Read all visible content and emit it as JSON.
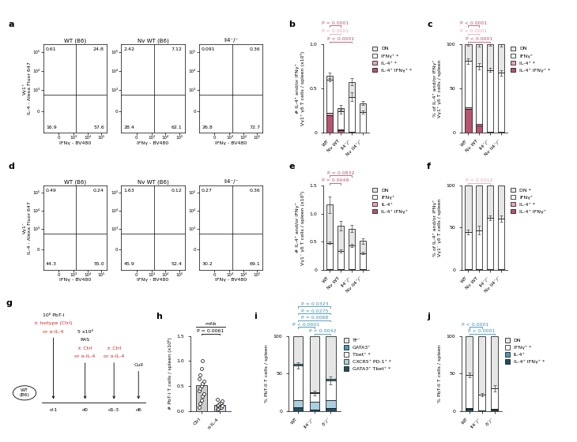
{
  "chart_data": [
    {
      "type": "flow",
      "panel": "a",
      "ylabel": "Vγ1⁺\nIL-4 - Alexa Fluor 647",
      "xlabel": "IFNγ - BV480",
      "log": true,
      "xlim": [
        -1000,
        250000
      ],
      "ylim": [
        -1000,
        250000
      ],
      "xticks": [
        0,
        {
          "value": 1000,
          "label": "10³"
        },
        {
          "value": 10000,
          "label": "10⁴"
        },
        {
          "value": 100000,
          "label": "10⁵"
        }
      ],
      "yticks": [
        0,
        {
          "value": 1000,
          "label": "10³"
        },
        {
          "value": 10000,
          "label": "10⁴"
        },
        {
          "value": 100000,
          "label": "10⁵"
        }
      ],
      "gates": {
        "x": 1500,
        "y": 800
      },
      "plots": [
        {
          "title": "WT (B6)",
          "quadrants": {
            "UL": 0.61,
            "UR": 24.8,
            "LL": 16.9,
            "LR": 57.6
          }
        },
        {
          "title": "Nv WT (B6)",
          "quadrants": {
            "UL": 2.42,
            "UR": 7.12,
            "LL": 28.4,
            "LR": 62.1
          }
        },
        {
          "title": "Il4⁻/⁻",
          "quadrants": {
            "UL": 0.091,
            "UR": 0.36,
            "LL": 26.8,
            "LR": 72.7
          }
        }
      ]
    },
    {
      "type": "bar",
      "stacked": true,
      "panel": "b",
      "ylabel": "# IL-4⁺ and/or IFNγ⁺\nVγ1⁺ γδ T cells / spleen (x10⁵)",
      "categories": [
        "WT",
        "Nv WT",
        "Il4⁻/⁻",
        "Nv Il4⁻/⁻"
      ],
      "ylim": [
        0,
        1
      ],
      "yticks": [
        0,
        0.5,
        {
          "value": 1,
          "label": "1.0"
        }
      ],
      "legend": "right",
      "series": [
        {
          "name": "IL-4⁺ IFNγ⁺ *",
          "color": "#b5566e",
          "values": [
            0.2,
            0.03,
            0.003,
            0.002
          ]
        },
        {
          "name": "IL-4⁺ *",
          "color": "#e6a7b8",
          "values": [
            0.02,
            0.01,
            0.002,
            0.001
          ]
        },
        {
          "name": "IFNγ⁺ *",
          "color": "#ffffff",
          "values": [
            0.38,
            0.2,
            0.4,
            0.23
          ],
          "errors": [
            0.02,
            0.03,
            0.05,
            0.02
          ]
        },
        {
          "name": "DN",
          "color": "#e6e6e6",
          "values": [
            0.04,
            0.04,
            0.17,
            0.1
          ],
          "errors": [
            0.04,
            0.03,
            0.04,
            0.02
          ]
        }
      ],
      "annotations": [
        {
          "text": "P < 0.0001",
          "between": [
            "WT",
            "Il4⁻/⁻"
          ],
          "color": "#b5566e"
        },
        {
          "text": "P = 0.0001",
          "between": [
            "WT",
            "Nv WT"
          ],
          "color": "#e6a7b8"
        },
        {
          "text": "P = 0.0001",
          "between": [
            "WT",
            "Nv WT"
          ],
          "color": "#b5566e"
        }
      ]
    },
    {
      "type": "bar",
      "stacked": true,
      "panel": "c",
      "ylabel": "% of IL-4⁺ and/or IFNγ⁺\nVγ1⁺ γδ T cells / spleen",
      "categories": [
        "WT",
        "Nv WT",
        "Il4⁻/⁻",
        "Nv Il4⁻/⁻"
      ],
      "ylim": [
        0,
        100
      ],
      "yticks": [
        0,
        50,
        100
      ],
      "legend": "right",
      "series": [
        {
          "name": "IL-4⁺ IFNγ⁺ *",
          "color": "#b5566e",
          "values": [
            27,
            8,
            0.5,
            0.3
          ]
        },
        {
          "name": "IL-4⁺ *",
          "color": "#e6a7b8",
          "values": [
            2,
            2,
            0.3,
            0.2
          ]
        },
        {
          "name": "IFNγ⁺",
          "color": "#ffffff",
          "values": [
            52,
            65,
            70,
            67
          ],
          "errors": [
            3,
            4,
            2,
            3
          ]
        },
        {
          "name": "DN",
          "color": "#e6e6e6",
          "values": [
            19,
            25,
            29.2,
            32.5
          ],
          "errors": [
            2,
            3,
            2,
            3
          ]
        }
      ],
      "annotations": [
        {
          "text": "P < 0.0001",
          "between": [
            "WT",
            "Il4⁻/⁻"
          ],
          "color": "#b5566e"
        },
        {
          "text": "P < 0.0001",
          "between": [
            "WT",
            "Nv WT"
          ],
          "color": "#e6a7b8"
        },
        {
          "text": "P < 0.0001",
          "between": [
            "WT",
            "Nv WT"
          ],
          "color": "#b5566e"
        }
      ]
    },
    {
      "type": "flow",
      "panel": "d",
      "ylabel": "Vγ1⁻\nIL-4 - Alexa Fluor 647",
      "xlabel": "IFNγ - BV480",
      "log": true,
      "xlim": [
        -1000,
        250000
      ],
      "ylim": [
        -1000,
        250000
      ],
      "xticks": [
        0,
        {
          "value": 1000,
          "label": "10³"
        },
        {
          "value": 10000,
          "label": "10⁴"
        },
        {
          "value": 100000,
          "label": "10⁵"
        }
      ],
      "yticks": [
        0,
        {
          "value": 1000,
          "label": "10³"
        },
        {
          "value": 10000,
          "label": "10⁴"
        },
        {
          "value": 100000,
          "label": "10⁵"
        }
      ],
      "gates": {
        "x": 1500,
        "y": 800
      },
      "plots": [
        {
          "title": "WT (B6)",
          "quadrants": {
            "UL": 0.49,
            "UR": 0.24,
            "LL": 44.3,
            "LR": 55.0
          }
        },
        {
          "title": "Nv WT (B6)",
          "quadrants": {
            "UL": 1.63,
            "UR": 0.12,
            "LL": 45.9,
            "LR": 52.4
          }
        },
        {
          "title": "Il4⁻/⁻",
          "quadrants": {
            "UL": 0.27,
            "UR": 0.36,
            "LL": 30.2,
            "LR": 69.1
          }
        }
      ]
    },
    {
      "type": "bar",
      "stacked": true,
      "panel": "e",
      "ylabel": "# IL-4⁺ and/or IFNγ⁺\nVγ1⁻ γδ T cells / spleen (x10⁵)",
      "categories": [
        "WT",
        "Nv WT",
        "Il4⁻/⁻",
        "Nv Il4⁻/⁻"
      ],
      "ylim": [
        0,
        1.5
      ],
      "yticks": [
        0,
        0.5,
        {
          "value": 1,
          "label": "1.0"
        },
        1.5
      ],
      "legend": "right",
      "series": [
        {
          "name": "IL-4⁺ IFNγ⁺",
          "color": "#b5566e",
          "values": [
            0.005,
            0.003,
            0.002,
            0.002
          ]
        },
        {
          "name": "IL-4⁺",
          "color": "#e6a7b8",
          "values": [
            0.005,
            0.003,
            0.002,
            0.001
          ]
        },
        {
          "name": "IFNγ⁺",
          "color": "#ffffff",
          "values": [
            0.47,
            0.33,
            0.43,
            0.29
          ],
          "errors": [
            0.02,
            0.03,
            0.03,
            0.02
          ]
        },
        {
          "name": "DN",
          "color": "#e6e6e6",
          "values": [
            0.68,
            0.45,
            0.3,
            0.22
          ],
          "errors": [
            0.15,
            0.08,
            0.06,
            0.05
          ]
        }
      ],
      "annotations": [
        {
          "text": "P = 0.0049",
          "between": [
            "WT",
            "Nv WT"
          ],
          "color": "#b5566e"
        },
        {
          "text": "P = 0.0832",
          "between": [
            "WT",
            "Il4⁻/⁻"
          ],
          "color": "#b5566e"
        }
      ]
    },
    {
      "type": "bar",
      "stacked": true,
      "panel": "f",
      "ylabel": "% of IL-4⁺ and/or IFNγ⁺\nVγ1⁻ γδ T cells / spleen",
      "categories": [
        "WT",
        "Nv WT",
        "Il4⁻/⁻",
        "Nv Il4⁻/⁻"
      ],
      "ylim": [
        0,
        100
      ],
      "yticks": [
        0,
        50,
        100
      ],
      "legend": "right",
      "series": [
        {
          "name": "IL-4⁺ IFNγ⁺",
          "color": "#b5566e",
          "values": [
            0.5,
            0.5,
            0.3,
            0.3
          ]
        },
        {
          "name": "IL-4⁺ *",
          "color": "#e6a7b8",
          "values": [
            0.5,
            0.5,
            0.3,
            0.3
          ]
        },
        {
          "name": "IFNγ⁺",
          "color": "#ffffff",
          "values": [
            44,
            46,
            61,
            60
          ],
          "errors": [
            3,
            5,
            3,
            4
          ]
        },
        {
          "name": "DN *",
          "color": "#e6e6e6",
          "values": [
            55,
            53,
            38.4,
            39.4
          ]
        }
      ],
      "annotations": [
        {
          "text": "P = 0.0212",
          "between": [
            "WT",
            "Il4⁻/⁻"
          ],
          "color": "#e6a7b8"
        }
      ]
    },
    {
      "type": "diagram",
      "panel": "g",
      "mouse": [
        "WT",
        "(B6)"
      ],
      "events": [
        {
          "day": "d-1",
          "above": [
            "10⁶ PbT-I"
          ],
          "treatment": [
            "± Isotype (Ctrl)",
            "or α-IL-4"
          ]
        },
        {
          "day": "d0",
          "above": [
            "5 x10⁴",
            "RAS"
          ],
          "treatment": [
            "± Ctrl",
            "or α-IL-4"
          ]
        },
        {
          "day": "d1-3",
          "above": [],
          "treatment": [
            "± Ctrl",
            "or α-IL-4"
          ]
        },
        {
          "day": "d6",
          "above": [
            "Cull"
          ],
          "treatment": []
        }
      ]
    },
    {
      "type": "bar",
      "panel": "h",
      "header": "mAb",
      "ylabel": "# PbT-I T cells / spleen (x10⁶)",
      "categories": [
        "Ctrl",
        "α-IL-4"
      ],
      "values": [
        0.52,
        0.12
      ],
      "colors": [
        "#cccccc",
        "#e0d6ef"
      ],
      "points": [
        [
          0.08,
          0.15,
          0.22,
          0.3,
          0.35,
          0.4,
          0.45,
          0.5,
          0.55,
          0.6,
          0.65,
          0.72,
          0.85,
          1.0
        ],
        [
          0.03,
          0.05,
          0.07,
          0.08,
          0.1,
          0.11,
          0.13,
          0.15,
          0.17,
          0.2,
          0.24
        ]
      ],
      "ylim": [
        0,
        1.5
      ],
      "yticks": [
        {
          "value": 0,
          "label": "0.0"
        },
        0.5,
        {
          "value": 1,
          "label": "1.0"
        },
        1.5
      ],
      "annotations": [
        {
          "text": "P = 0.0061",
          "between": [
            "Ctrl",
            "α-IL-4"
          ],
          "color": "#000000"
        }
      ]
    },
    {
      "type": "bar",
      "stacked": true,
      "panel": "i",
      "ylabel": "% PbT-II T cells / spleen",
      "categories": [
        "WT",
        "Il4⁻/⁻",
        "δ⁻/⁻"
      ],
      "ylim": [
        0,
        100
      ],
      "yticks": [
        0,
        50,
        100
      ],
      "legend": "right",
      "series": [
        {
          "name": "GATA3⁺ Tbet⁺ *",
          "color": "#1f4e5f",
          "values": [
            5,
            2,
            4
          ]
        },
        {
          "name": "CXCR5⁺ PD-1⁺ *",
          "color": "#a9cfe0",
          "values": [
            9,
            10,
            10
          ]
        },
        {
          "name": "Tbet⁺ *",
          "color": "#ffffff",
          "values": [
            47,
            12,
            27
          ],
          "errors": [
            4,
            3,
            5
          ]
        },
        {
          "name": "GATA3⁺",
          "color": "#4a9bb0",
          "values": [
            2,
            1,
            2
          ]
        },
        {
          "name": "TF⁻",
          "color": "#e6e6e6",
          "values": [
            37,
            75,
            57
          ]
        }
      ],
      "annotations": [
        {
          "text": "P = 0.0042",
          "between": [
            "Il4⁻/⁻",
            "δ⁻/⁻"
          ],
          "color": "#3d8fb0"
        },
        {
          "text": "P < 0.0001",
          "between": [
            "WT",
            "Il4⁻/⁻"
          ],
          "color": "#3d8fb0"
        },
        {
          "text": "P = 0.0068",
          "between": [
            "WT",
            "δ⁻/⁻"
          ],
          "color": "#3d8fb0"
        },
        {
          "text": "P = 0.0275",
          "between": [
            "WT",
            "δ⁻/⁻"
          ],
          "color": "#3d8fb0"
        },
        {
          "text": "P = 0.0323",
          "between": [
            "WT",
            "δ⁻/⁻"
          ],
          "color": "#3d8fb0"
        }
      ]
    },
    {
      "type": "bar",
      "stacked": true,
      "panel": "j",
      "ylabel": "% PbT-II T cells / spleen",
      "categories": [
        "WT",
        "Il4⁻/⁻",
        "δ⁻/⁻"
      ],
      "ylim": [
        0,
        100
      ],
      "yticks": [
        0,
        50,
        100
      ],
      "legend": "right",
      "series": [
        {
          "name": "IL-4⁺ IFNγ⁺ *",
          "color": "#1f4e5f",
          "values": [
            3,
            0.5,
            2
          ]
        },
        {
          "name": "IL-4⁺",
          "color": "#4a9bb0",
          "values": [
            1,
            0.3,
            0.5
          ]
        },
        {
          "name": "IFNγ⁺ *",
          "color": "#ffffff",
          "values": [
            44,
            21,
            28
          ],
          "errors": [
            3,
            2,
            4
          ]
        },
        {
          "name": "DN",
          "color": "#e6e6e6",
          "values": [
            52,
            78.2,
            69.5
          ]
        }
      ],
      "annotations": [
        {
          "text": "P < 0.0001",
          "between": [
            "WT",
            "δ⁻/⁻"
          ],
          "color": "#3d8fb0"
        },
        {
          "text": "P < 0.0001",
          "between": [
            "WT",
            "Il4⁻/⁻"
          ],
          "color": "#3d8fb0"
        }
      ]
    }
  ]
}
